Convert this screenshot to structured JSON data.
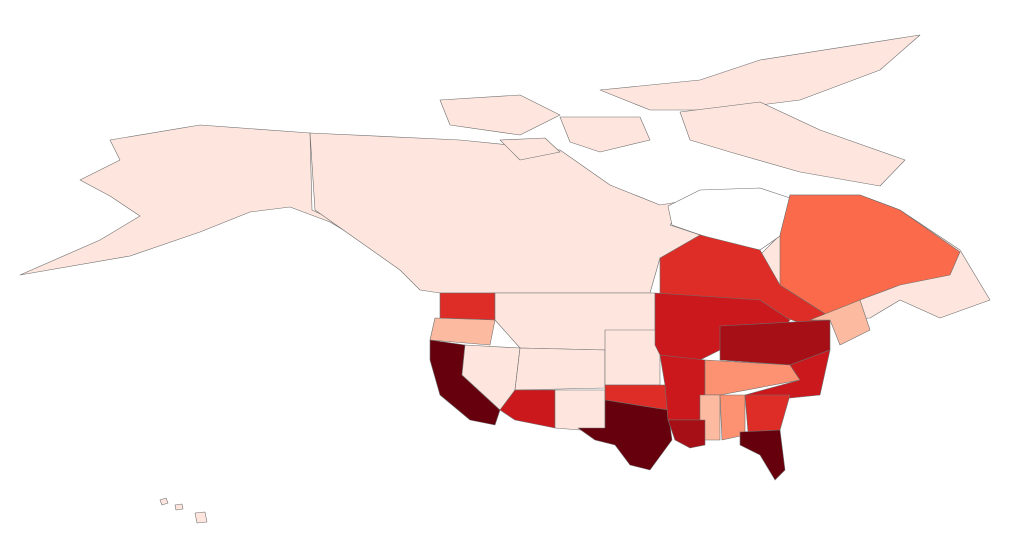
{
  "map": {
    "palette": [
      "#fee6de",
      "#fcbba1",
      "#fc9272",
      "#fb6a4a",
      "#de2d26",
      "#cb181d",
      "#a50f15",
      "#67000d"
    ]
  }
}
